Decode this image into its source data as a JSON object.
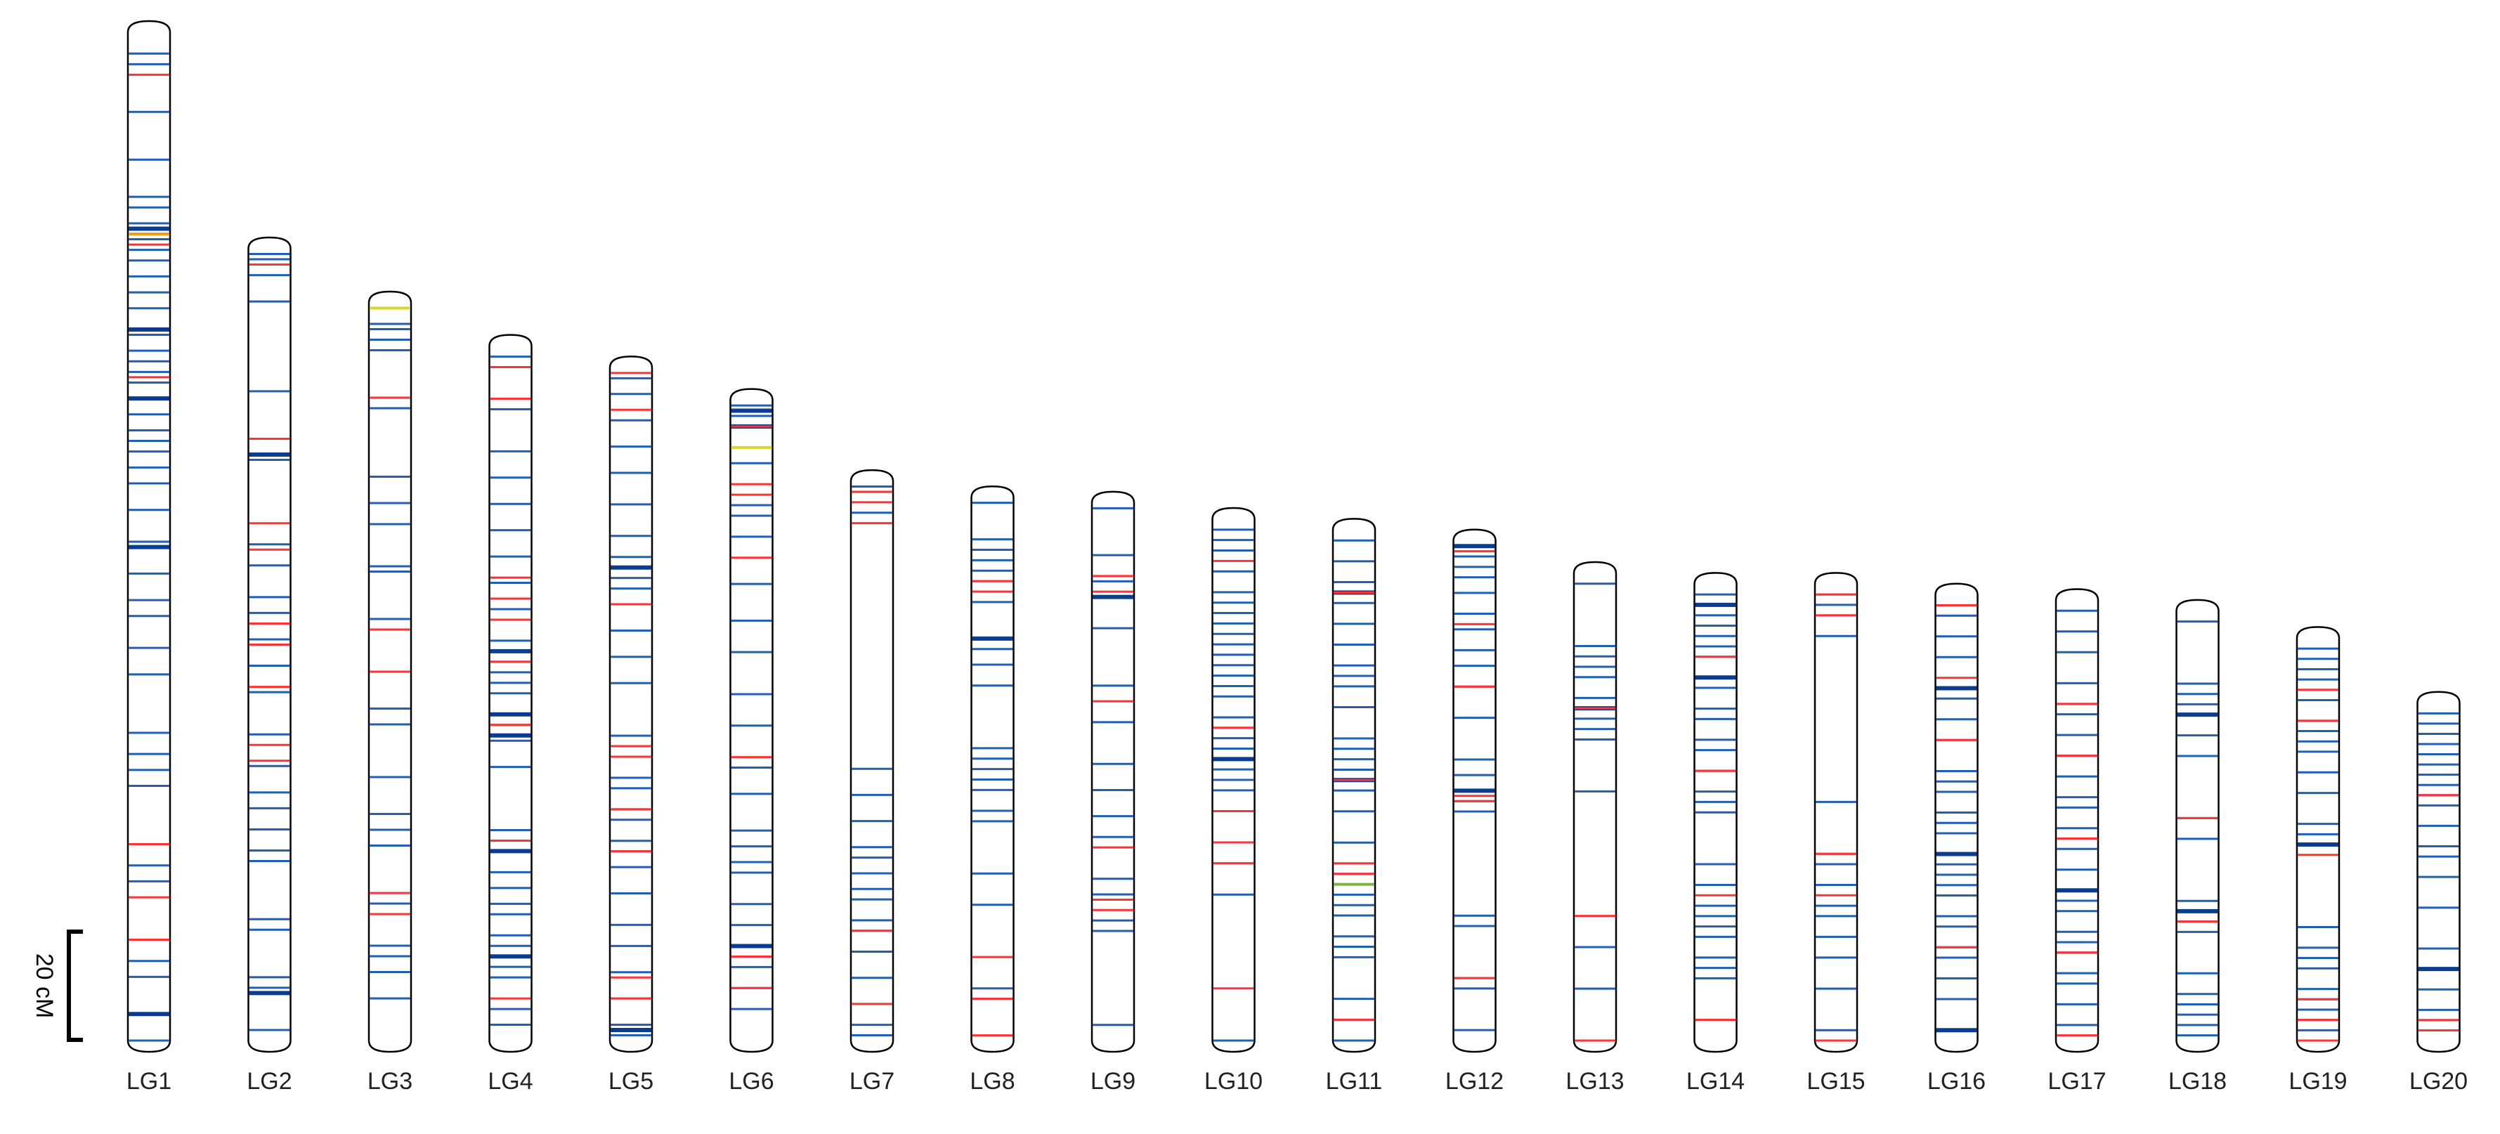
{
  "colors": {
    "outline": "#000000",
    "marker_blue": "#1f5fb4",
    "marker_dark_blue": "#0a3d8f",
    "marker_red": "#ff3333",
    "marker_orange": "#f39c12",
    "marker_yellow": "#d8d820",
    "marker_green": "#7cb342"
  },
  "scale_bar": {
    "label": "20 cM",
    "value_cM": 20
  },
  "chart_data": {
    "type": "linkage-map",
    "units": "cM",
    "linkage_groups": [
      {
        "name": "LG1",
        "length_cM": 190,
        "blue": [
          4,
          6,
          15,
          24,
          31,
          33,
          36,
          39,
          41,
          43,
          46,
          49,
          52,
          57,
          60,
          62,
          64,
          66,
          69,
          72,
          75,
          77,
          79,
          82,
          85,
          90,
          96,
          102,
          107,
          110,
          116,
          121,
          132,
          136,
          139,
          142,
          157,
          160,
          175,
          178,
          194,
          197,
          199
        ],
        "dark": [
          37,
          56,
          69,
          97,
          185
        ],
        "red": [
          8,
          40,
          65,
          153,
          163,
          171
        ],
        "orange": [
          38
        ],
        "yellow": [],
        "green": []
      },
      {
        "name": "LG2",
        "length_cM": 150,
        "blue": [
          1,
          2,
          3,
          5,
          10,
          27,
          36,
          40,
          56,
          60,
          66,
          69,
          74,
          79,
          84,
          92,
          98,
          103,
          106,
          110,
          114,
          116,
          127,
          129,
          138,
          140,
          148
        ],
        "dark": [
          39,
          141
        ],
        "red": [
          3,
          36,
          52,
          57,
          71,
          75,
          83,
          94,
          97
        ],
        "orange": [],
        "yellow": [],
        "green": []
      },
      {
        "name": "LG3",
        "length_cM": 140,
        "blue": [
          4,
          5,
          7,
          9,
          20,
          33,
          38,
          42,
          50,
          51,
          60,
          62,
          70,
          77,
          80,
          90,
          97,
          100,
          103,
          112,
          114,
          116,
          122,
          124,
          127,
          132
        ],
        "dark": [],
        "red": [
          18,
          62,
          70,
          112,
          116
        ],
        "orange": [],
        "yellow": [
          1
        ],
        "green": []
      },
      {
        "name": "LG4",
        "length_cM": 132,
        "blue": [
          2,
          4,
          12,
          20,
          25,
          30,
          35,
          40,
          45,
          50,
          56,
          58,
          60,
          62,
          64,
          66,
          70,
          72,
          75,
          80,
          92,
          94,
          96,
          100,
          103,
          106,
          108,
          112,
          114,
          116,
          118,
          120,
          126,
          129
        ],
        "dark": [
          58,
          70,
          74,
          96,
          116
        ],
        "red": [
          4,
          10,
          44,
          48,
          52,
          60,
          72,
          94,
          124
        ],
        "orange": [],
        "yellow": [],
        "green": []
      },
      {
        "name": "LG5",
        "length_cM": 128,
        "blue": [
          2,
          5,
          10,
          15,
          20,
          26,
          32,
          36,
          38,
          40,
          42,
          45,
          50,
          55,
          60,
          70,
          78,
          80,
          84,
          86,
          90,
          92,
          95,
          100,
          106,
          110,
          115,
          120,
          125,
          127
        ],
        "dark": [
          38,
          126
        ],
        "red": [
          1,
          8,
          45,
          72,
          74,
          84,
          92,
          116,
          120
        ],
        "orange": [],
        "yellow": [],
        "green": []
      },
      {
        "name": "LG6",
        "length_cM": 122,
        "blue": [
          1,
          2,
          3,
          5,
          12,
          20,
          22,
          26,
          35,
          42,
          48,
          56,
          62,
          70,
          75,
          82,
          85,
          88,
          90,
          96,
          100,
          104,
          106,
          108,
          112,
          116
        ],
        "dark": [
          2,
          5,
          104
        ],
        "red": [
          5,
          16,
          18,
          30,
          68,
          106,
          112
        ],
        "orange": [],
        "yellow": [
          9
        ],
        "green": []
      },
      {
        "name": "LG7",
        "length_cM": 107,
        "blue": [
          1,
          2,
          6,
          55,
          60,
          65,
          70,
          72,
          75,
          78,
          80,
          84,
          86,
          90,
          95,
          104,
          106
        ],
        "dark": [],
        "red": [
          2,
          4,
          8,
          86,
          100
        ],
        "orange": [],
        "yellow": [],
        "green": []
      },
      {
        "name": "LG8",
        "length_cM": 104,
        "blue": [
          1,
          8,
          10,
          12,
          14,
          16,
          18,
          20,
          27,
          29,
          32,
          36,
          48,
          50,
          52,
          54,
          56,
          60,
          62,
          72,
          78,
          94
        ],
        "dark": [
          27
        ],
        "red": [
          16,
          18,
          88,
          96,
          103
        ],
        "orange": [],
        "yellow": [],
        "green": []
      },
      {
        "name": "LG9",
        "length_cM": 103,
        "blue": [
          1,
          10,
          15,
          18,
          24,
          35,
          42,
          50,
          55,
          60,
          64,
          72,
          75,
          76,
          80,
          82,
          100
        ],
        "dark": [
          18
        ],
        "red": [
          14,
          17,
          38,
          66,
          76,
          78
        ],
        "orange": [],
        "yellow": [],
        "green": []
      },
      {
        "name": "LG10",
        "length_cM": 100,
        "blue": [
          2,
          4,
          6,
          10,
          14,
          16,
          18,
          20,
          22,
          24,
          26,
          28,
          30,
          32,
          34,
          38,
          42,
          44,
          46,
          48,
          50,
          52,
          56,
          66,
          72,
          102
        ],
        "dark": [
          46
        ],
        "red": [
          8,
          40,
          56,
          62,
          66,
          90
        ],
        "orange": [],
        "yellow": [],
        "green": []
      },
      {
        "name": "LG11",
        "length_cM": 98,
        "blue": [
          2,
          6,
          10,
          12,
          14,
          18,
          22,
          26,
          28,
          30,
          34,
          40,
          42,
          44,
          46,
          48,
          50,
          54,
          60,
          64,
          66,
          68,
          70,
          72,
          74,
          78,
          80,
          82,
          90,
          94,
          98,
          99
        ],
        "dark": [
          12,
          48
        ],
        "red": [
          12,
          48,
          64,
          66,
          68,
          94
        ],
        "orange": [],
        "yellow": [],
        "green": [
          68
        ]
      },
      {
        "name": "LG12",
        "length_cM": 96,
        "blue": [
          1,
          3,
          5,
          7,
          10,
          14,
          17,
          21,
          24,
          28,
          34,
          42,
          45,
          48,
          50,
          52,
          72,
          74,
          84,
          86,
          94
        ],
        "dark": [
          1,
          48
        ],
        "red": [
          2,
          16,
          28,
          49,
          50,
          84
        ],
        "orange": [],
        "yellow": [],
        "green": []
      },
      {
        "name": "LG13",
        "length_cM": 90,
        "blue": [
          2,
          14,
          16,
          18,
          20,
          24,
          26,
          28,
          30,
          32,
          42,
          72,
          80,
          90
        ],
        "dark": [
          26
        ],
        "red": [
          26,
          66,
          92
        ],
        "orange": [],
        "yellow": [],
        "green": []
      },
      {
        "name": "LG14",
        "length_cM": 88,
        "blue": [
          2,
          4,
          6,
          8,
          10,
          12,
          14,
          18,
          20,
          24,
          26,
          30,
          32,
          36,
          40,
          42,
          44,
          54,
          58,
          62,
          64,
          66,
          68,
          72,
          74,
          76
        ],
        "dark": [
          4,
          18
        ],
        "red": [
          14,
          36,
          60,
          84
        ],
        "orange": [],
        "yellow": [],
        "green": []
      },
      {
        "name": "LG15",
        "length_cM": 88,
        "blue": [
          2,
          4,
          10,
          42,
          52,
          54,
          58,
          62,
          64,
          68,
          72,
          78,
          86,
          90
        ],
        "dark": [],
        "red": [
          2,
          6,
          52,
          60,
          90
        ],
        "orange": [],
        "yellow": [],
        "green": []
      },
      {
        "name": "LG16",
        "length_cM": 86,
        "blue": [
          2,
          4,
          8,
          12,
          18,
          20,
          24,
          28,
          34,
          36,
          38,
          42,
          44,
          46,
          50,
          52,
          54,
          56,
          58,
          62,
          64,
          68,
          70,
          74,
          78,
          84
        ],
        "dark": [
          18,
          50,
          84
        ],
        "red": [
          2,
          16,
          28,
          68
        ],
        "orange": [],
        "yellow": [],
        "green": []
      },
      {
        "name": "LG17",
        "length_cM": 85,
        "blue": [
          2,
          6,
          10,
          16,
          20,
          22,
          26,
          30,
          34,
          38,
          40,
          44,
          48,
          52,
          56,
          58,
          60,
          64,
          66,
          68,
          72,
          74,
          78,
          82
        ],
        "dark": [
          56
        ],
        "red": [
          20,
          30,
          46,
          68,
          84
        ],
        "orange": [],
        "yellow": [],
        "green": []
      },
      {
        "name": "LG18",
        "length_cM": 83,
        "blue": [
          2,
          14,
          16,
          18,
          20,
          24,
          28,
          40,
          44,
          56,
          58,
          60,
          62,
          70,
          74,
          76,
          78,
          80,
          82
        ],
        "dark": [
          20,
          58
        ],
        "red": [
          40,
          60
        ],
        "orange": [],
        "yellow": [],
        "green": []
      },
      {
        "name": "LG19",
        "length_cM": 78,
        "blue": [
          2,
          4,
          6,
          8,
          12,
          16,
          18,
          20,
          22,
          26,
          30,
          36,
          38,
          40,
          56,
          60,
          62,
          64,
          68,
          70,
          72,
          74,
          76,
          78,
          80
        ],
        "dark": [
          40
        ],
        "red": [
          10,
          16,
          42,
          70,
          74,
          78
        ],
        "orange": [],
        "yellow": [],
        "green": []
      },
      {
        "name": "LG20",
        "length_cM": 66,
        "blue": [
          2,
          4,
          6,
          8,
          10,
          12,
          14,
          16,
          18,
          20,
          24,
          28,
          30,
          34,
          40,
          48,
          52,
          56,
          60,
          62,
          64
        ],
        "dark": [
          52
        ],
        "red": [
          18,
          62,
          64
        ],
        "orange": [],
        "yellow": [],
        "green": []
      }
    ]
  }
}
